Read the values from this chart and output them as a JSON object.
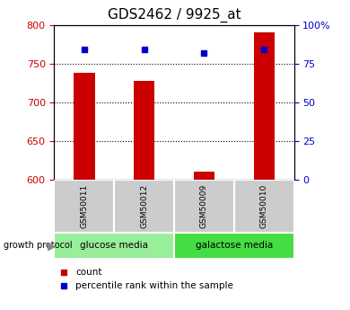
{
  "title": "GDS2462 / 9925_at",
  "samples": [
    "GSM50011",
    "GSM50012",
    "GSM50009",
    "GSM50010"
  ],
  "counts": [
    738,
    728,
    610,
    790
  ],
  "percentiles": [
    84,
    84,
    82,
    84
  ],
  "ylim_left": [
    600,
    800
  ],
  "ylim_right": [
    0,
    100
  ],
  "yticks_left": [
    600,
    650,
    700,
    750,
    800
  ],
  "yticks_right": [
    0,
    25,
    50,
    75,
    100
  ],
  "yticklabels_right": [
    "0",
    "25",
    "50",
    "75",
    "100%"
  ],
  "bar_color": "#cc0000",
  "dot_color": "#0000cc",
  "bar_width": 0.35,
  "group_labels": [
    "glucose media",
    "galactose media"
  ],
  "group_color1": "#99ee99",
  "group_color2": "#44dd44",
  "legend_count_label": "count",
  "legend_pct_label": "percentile rank within the sample",
  "growth_protocol_label": "growth protocol",
  "title_fontsize": 11,
  "axis_fontsize": 8,
  "label_fontsize": 7.5
}
